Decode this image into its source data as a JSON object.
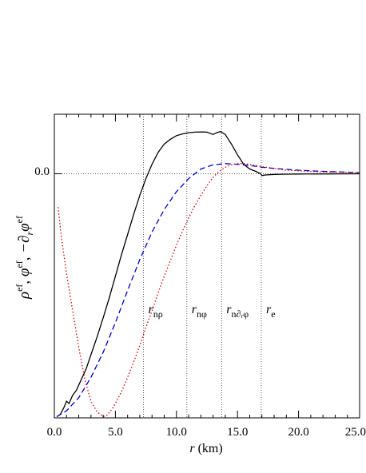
{
  "chart_data": {
    "type": "line",
    "xlabel_var": "r",
    "xlabel_unit": "(km)",
    "xlim": [
      0,
      25
    ],
    "ylim": [
      -2.05,
      0.5
    ],
    "x_ticks": [
      "0.0",
      "5.0",
      "10.0",
      "15.0",
      "20.0",
      "25.0"
    ],
    "y_tick_label": "0.0",
    "ylabel": {
      "t1_base": "ρ",
      "t1_sup": "ef",
      "t2_base": "φ",
      "t2_sup": "ef",
      "t3_op": "−∂",
      "t3_sub": "r",
      "t3_base": "φ",
      "t3_sup": "ef"
    },
    "grid": "dotted reference lines at y=0 and at each marked radius",
    "vlines": [
      {
        "x": 7.3,
        "base": "r",
        "sub": "nρ"
      },
      {
        "x": 10.85,
        "base": "r",
        "sub": "nφ"
      },
      {
        "x": 13.7,
        "base": "r",
        "sub": "n∂ᵣφ"
      },
      {
        "x": 16.95,
        "base": "r",
        "sub": "e"
      }
    ],
    "series": [
      {
        "style": "solid",
        "color": "#000000",
        "x": [
          0.2,
          0.5,
          0.8,
          1.0,
          1.2,
          1.5,
          1.8,
          2.2,
          2.6,
          3.0,
          3.5,
          4.0,
          4.5,
          5.0,
          5.5,
          6.0,
          6.5,
          7.0,
          7.5,
          8.0,
          8.5,
          9.0,
          9.5,
          10.0,
          10.5,
          11.0,
          11.5,
          12.0,
          12.5,
          13.0,
          13.3,
          13.6,
          14.0,
          14.5,
          15.0,
          15.5,
          16.0,
          16.5,
          16.9,
          17.0,
          17.3,
          18.0,
          19.0,
          20.0,
          22.0,
          25.0
        ],
        "y": [
          -2.04,
          -2.02,
          -1.96,
          -1.91,
          -1.93,
          -1.86,
          -1.82,
          -1.73,
          -1.64,
          -1.52,
          -1.37,
          -1.21,
          -1.04,
          -0.86,
          -0.68,
          -0.51,
          -0.34,
          -0.18,
          -0.04,
          0.08,
          0.18,
          0.25,
          0.29,
          0.32,
          0.335,
          0.345,
          0.35,
          0.352,
          0.35,
          0.33,
          0.345,
          0.355,
          0.33,
          0.25,
          0.16,
          0.08,
          0.04,
          0.02,
          0.0,
          -0.015,
          -0.01,
          -0.005,
          -0.003,
          -0.002,
          -0.001,
          0.0
        ]
      },
      {
        "style": "dashed",
        "color": "#0000cc",
        "x": [
          0.2,
          1.0,
          2.0,
          3.0,
          4.0,
          5.0,
          6.0,
          7.0,
          8.0,
          9.0,
          10.0,
          11.0,
          12.0,
          13.0,
          14.0,
          15.0,
          16.0,
          17.0,
          18.0,
          20.0,
          22.0,
          25.0
        ],
        "y": [
          -2.04,
          -1.99,
          -1.88,
          -1.71,
          -1.5,
          -1.25,
          -0.98,
          -0.72,
          -0.49,
          -0.3,
          -0.15,
          -0.04,
          0.04,
          0.075,
          0.085,
          0.08,
          0.07,
          0.055,
          0.045,
          0.03,
          0.02,
          0.01
        ]
      },
      {
        "style": "dotted",
        "color": "#dd0000",
        "x": [
          0.3,
          0.6,
          1.0,
          1.5,
          2.0,
          2.5,
          3.0,
          3.5,
          4.0,
          4.3,
          4.7,
          5.0,
          5.5,
          6.0,
          6.5,
          7.0,
          7.5,
          8.0,
          8.5,
          9.0,
          9.5,
          10.0,
          10.5,
          11.0,
          11.5,
          12.0,
          12.5,
          13.0,
          13.5,
          14.0,
          14.5,
          15.0,
          15.5,
          16.0,
          16.5,
          17.0,
          18.0,
          19.0,
          20.0,
          22.0,
          25.0
        ],
        "y": [
          -0.28,
          -0.55,
          -0.84,
          -1.15,
          -1.46,
          -1.73,
          -1.91,
          -2.0,
          -2.04,
          -2.03,
          -1.98,
          -1.93,
          -1.83,
          -1.71,
          -1.58,
          -1.44,
          -1.29,
          -1.15,
          -1.0,
          -0.86,
          -0.73,
          -0.6,
          -0.48,
          -0.37,
          -0.27,
          -0.18,
          -0.1,
          -0.03,
          0.02,
          0.055,
          0.075,
          0.085,
          0.085,
          0.08,
          0.07,
          0.06,
          0.045,
          0.03,
          0.025,
          0.015,
          0.01
        ]
      }
    ]
  }
}
